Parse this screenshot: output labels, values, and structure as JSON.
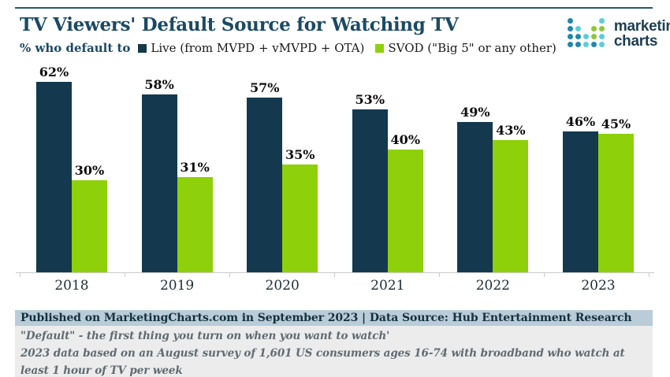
{
  "header": {
    "title": "TV Viewers' Default Source for Watching TV",
    "subtitle_prefix": "% who default to",
    "legend": [
      {
        "label": "Live (from MVPD + vMVPD + OTA)",
        "color": "#16384a"
      },
      {
        "label": "SVOD (\"Big 5\" or any other)",
        "color": "#8ed00a"
      }
    ],
    "logo": {
      "line1": "marketing",
      "line2": "charts",
      "dot_colors": {
        "blue": "#2186ae",
        "teal": "#5ecdd8",
        "green": "#8ec63c"
      },
      "dot_grid": [
        [
          "blue",
          "",
          "",
          "",
          "teal"
        ],
        [
          "blue",
          "teal",
          "",
          "green",
          "green"
        ],
        [
          "blue",
          "blue",
          "teal",
          "green",
          "teal"
        ],
        [
          "blue",
          "blue",
          "teal",
          "blue",
          "teal"
        ]
      ]
    }
  },
  "chart_data": {
    "type": "bar",
    "categories": [
      "2018",
      "2019",
      "2020",
      "2021",
      "2022",
      "2023"
    ],
    "series": [
      {
        "name": "Live (from MVPD + vMVPD + OTA)",
        "color": "#14394e",
        "values": [
          62,
          58,
          57,
          53,
          49,
          46
        ]
      },
      {
        "name": "SVOD (\"Big 5\" or any other)",
        "color": "#8ed00a",
        "values": [
          30,
          31,
          35,
          40,
          43,
          45
        ]
      }
    ],
    "value_suffix": "%",
    "title": "TV Viewers' Default Source for Watching TV",
    "xlabel": "",
    "ylabel": "% who default to",
    "ylim": [
      0,
      68
    ],
    "grid": false,
    "legend_position": "top",
    "value_labels": true
  },
  "footer": {
    "publication": "Published on MarketingCharts.com in September 2023 | Data Source: Hub Entertainment Research",
    "notes": [
      "\"Default\" - the first thing you turn on when you want to watch'",
      "2023 data based on an August survey of 1,601 US consumers ages 16-74 with broadband who watch at least 1 hour of TV per week"
    ]
  }
}
